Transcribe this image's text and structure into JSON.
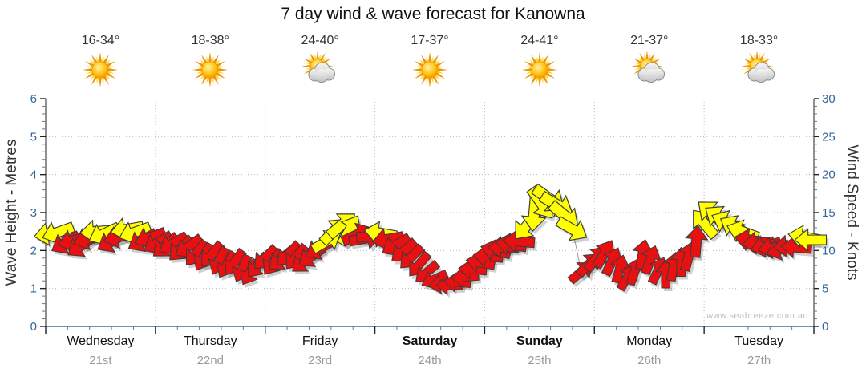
{
  "title": "7 day wind & wave forecast for Kanowna",
  "watermark": "www.seabreeze.com.au",
  "colors": {
    "arrow_red": "#e81010",
    "arrow_yellow": "#ffff00",
    "arrow_outline": "#3c3c3c",
    "arrow_shadow": "rgba(110,110,110,0.32)",
    "tick_label": "#336699",
    "axis_line": "#222222",
    "x_axis_line": "#3b68b2",
    "gridline": "#bbbbbb",
    "minor_tick": "#777777",
    "connector": "#999999"
  },
  "days": [
    {
      "name": "Wednesday",
      "date": "21st",
      "temp": "16-34°",
      "icon": "sunny",
      "bold": false
    },
    {
      "name": "Thursday",
      "date": "22nd",
      "temp": "18-38°",
      "icon": "sunny",
      "bold": false
    },
    {
      "name": "Friday",
      "date": "23rd",
      "temp": "24-40°",
      "icon": "partly-cloudy",
      "bold": false
    },
    {
      "name": "Saturday",
      "date": "24th",
      "temp": "17-37°",
      "icon": "sunny",
      "bold": true
    },
    {
      "name": "Sunday",
      "date": "25th",
      "temp": "24-41°",
      "icon": "sunny",
      "bold": true
    },
    {
      "name": "Monday",
      "date": "26th",
      "temp": "21-37°",
      "icon": "partly-cloudy",
      "bold": false
    },
    {
      "name": "Tuesday",
      "date": "27th",
      "temp": "18-33°",
      "icon": "partly-cloudy",
      "bold": false
    }
  ],
  "chart_data": {
    "type": "wind-arrows",
    "title": "7 day wind & wave forecast for Kanowna",
    "left_axis": {
      "label": "Wave Height - Metres",
      "min": 0,
      "max": 6,
      "major_ticks": [
        0,
        1,
        2,
        3,
        4,
        5,
        6
      ],
      "minor_step": 0.2
    },
    "right_axis": {
      "label": "Wind Speed - Knots",
      "min": 0,
      "max": 30,
      "major_ticks": [
        0,
        5,
        10,
        15,
        20,
        25,
        30
      ],
      "minor_step": 1
    },
    "x_axis": {
      "num_days": 7,
      "minor_ticks_per_day": 4,
      "grid": "day-boundaries-dotted"
    },
    "arrow_columns": [
      "day_position",
      "knots",
      "rotation_deg_cw_from_east",
      "color"
    ],
    "arrows": [
      [
        0.04,
        12.2,
        170,
        "y"
      ],
      [
        0.11,
        12.4,
        160,
        "y"
      ],
      [
        0.18,
        11.0,
        150,
        "r"
      ],
      [
        0.25,
        11.3,
        165,
        "r"
      ],
      [
        0.32,
        10.6,
        145,
        "r"
      ],
      [
        0.39,
        11.6,
        160,
        "r"
      ],
      [
        0.46,
        12.5,
        175,
        "y"
      ],
      [
        0.53,
        12.2,
        155,
        "y"
      ],
      [
        0.6,
        11.2,
        150,
        "r"
      ],
      [
        0.67,
        11.8,
        165,
        "r"
      ],
      [
        0.74,
        12.8,
        170,
        "y"
      ],
      [
        0.81,
        12.4,
        160,
        "y"
      ],
      [
        0.88,
        11.3,
        150,
        "r"
      ],
      [
        0.95,
        11.7,
        160,
        "r"
      ],
      [
        1.02,
        11.0,
        150,
        "r"
      ],
      [
        1.09,
        10.6,
        140,
        "r"
      ],
      [
        1.16,
        10.9,
        150,
        "r"
      ],
      [
        1.23,
        10.2,
        135,
        "r"
      ],
      [
        1.3,
        10.5,
        145,
        "r"
      ],
      [
        1.37,
        9.6,
        130,
        "r"
      ],
      [
        1.44,
        9.1,
        120,
        "r"
      ],
      [
        1.51,
        9.4,
        130,
        "r"
      ],
      [
        1.58,
        8.6,
        115,
        "r"
      ],
      [
        1.65,
        8.1,
        120,
        "r"
      ],
      [
        1.72,
        8.4,
        125,
        "r"
      ],
      [
        1.79,
        7.6,
        115,
        "r"
      ],
      [
        1.86,
        7.1,
        120,
        "r"
      ],
      [
        1.93,
        8.0,
        130,
        "r"
      ],
      [
        2.0,
        9.0,
        135,
        "r"
      ],
      [
        2.07,
        8.4,
        125,
        "r"
      ],
      [
        2.14,
        8.8,
        140,
        "r"
      ],
      [
        2.21,
        9.5,
        135,
        "r"
      ],
      [
        2.28,
        9.1,
        130,
        "r"
      ],
      [
        2.35,
        8.5,
        140,
        "r"
      ],
      [
        2.42,
        9.2,
        145,
        "r"
      ],
      [
        2.49,
        10.2,
        150,
        "r"
      ],
      [
        2.56,
        11.2,
        330,
        "y"
      ],
      [
        2.63,
        12.6,
        315,
        "y"
      ],
      [
        2.7,
        13.4,
        320,
        "y"
      ],
      [
        2.77,
        12.7,
        300,
        "y"
      ],
      [
        2.84,
        12.1,
        335,
        "r"
      ],
      [
        2.91,
        11.6,
        350,
        "r"
      ],
      [
        2.98,
        11.9,
        355,
        "r"
      ],
      [
        3.05,
        12.3,
        190,
        "y"
      ],
      [
        3.12,
        11.5,
        170,
        "r"
      ],
      [
        3.19,
        10.7,
        150,
        "r"
      ],
      [
        3.26,
        9.9,
        140,
        "r"
      ],
      [
        3.33,
        9.1,
        135,
        "r"
      ],
      [
        3.4,
        8.1,
        130,
        "r"
      ],
      [
        3.47,
        7.1,
        140,
        "r"
      ],
      [
        3.54,
        6.2,
        155,
        "r"
      ],
      [
        3.61,
        5.6,
        170,
        "r"
      ],
      [
        3.68,
        5.4,
        180,
        "r"
      ],
      [
        3.75,
        5.8,
        185,
        "r"
      ],
      [
        3.82,
        6.5,
        175,
        "r"
      ],
      [
        3.89,
        7.5,
        185,
        "r"
      ],
      [
        3.96,
        8.4,
        190,
        "r"
      ],
      [
        4.03,
        9.2,
        185,
        "r"
      ],
      [
        4.1,
        10.0,
        195,
        "r"
      ],
      [
        4.17,
        10.4,
        180,
        "r"
      ],
      [
        4.24,
        10.8,
        190,
        "r"
      ],
      [
        4.31,
        11.2,
        185,
        "r"
      ],
      [
        4.38,
        13.2,
        130,
        "y"
      ],
      [
        4.45,
        14.8,
        95,
        "y"
      ],
      [
        4.52,
        16.2,
        55,
        "y"
      ],
      [
        4.59,
        16.8,
        35,
        "y"
      ],
      [
        4.66,
        16.0,
        30,
        "y"
      ],
      [
        4.73,
        14.6,
        40,
        "y"
      ],
      [
        4.8,
        12.8,
        30,
        "y"
      ],
      [
        4.88,
        7.2,
        320,
        "r"
      ],
      [
        4.95,
        8.2,
        315,
        "r"
      ],
      [
        5.02,
        9.0,
        310,
        "r"
      ],
      [
        5.09,
        9.6,
        300,
        "r"
      ],
      [
        5.16,
        8.6,
        295,
        "r"
      ],
      [
        5.23,
        7.6,
        285,
        "r"
      ],
      [
        5.3,
        6.5,
        300,
        "r"
      ],
      [
        5.37,
        7.3,
        290,
        "r"
      ],
      [
        5.44,
        9.5,
        280,
        "r"
      ],
      [
        5.51,
        8.8,
        290,
        "r"
      ],
      [
        5.58,
        7.4,
        295,
        "r"
      ],
      [
        5.65,
        6.9,
        270,
        "r"
      ],
      [
        5.72,
        7.9,
        280,
        "r"
      ],
      [
        5.79,
        8.5,
        270,
        "r"
      ],
      [
        5.86,
        9.3,
        285,
        "r"
      ],
      [
        5.93,
        11.2,
        275,
        "r"
      ],
      [
        6.0,
        13.6,
        230,
        "y"
      ],
      [
        6.07,
        14.9,
        220,
        "y"
      ],
      [
        6.14,
        14.3,
        215,
        "y"
      ],
      [
        6.21,
        13.7,
        205,
        "y"
      ],
      [
        6.28,
        13.1,
        210,
        "y"
      ],
      [
        6.35,
        12.5,
        200,
        "y"
      ],
      [
        6.42,
        11.4,
        190,
        "r"
      ],
      [
        6.49,
        11.0,
        175,
        "r"
      ],
      [
        6.56,
        10.6,
        165,
        "r"
      ],
      [
        6.63,
        10.4,
        170,
        "r"
      ],
      [
        6.7,
        10.2,
        160,
        "r"
      ],
      [
        6.77,
        10.6,
        175,
        "r"
      ],
      [
        6.84,
        10.4,
        185,
        "r"
      ],
      [
        6.91,
        11.8,
        190,
        "y"
      ],
      [
        6.97,
        11.4,
        180,
        "y"
      ]
    ]
  }
}
